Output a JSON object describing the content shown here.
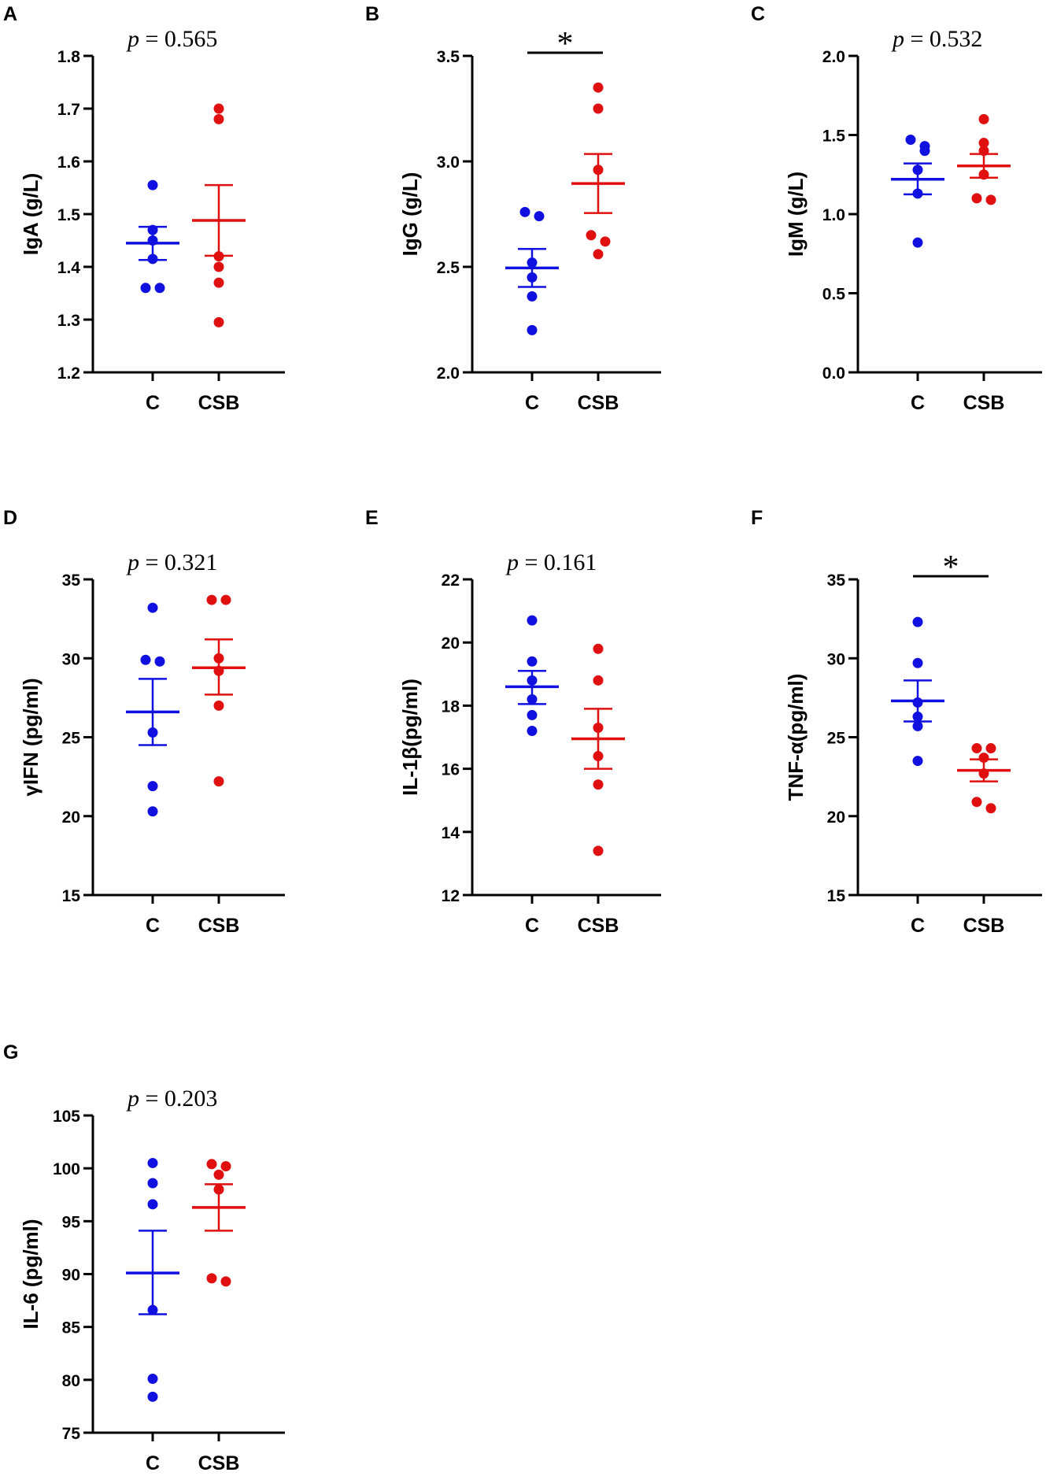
{
  "chart_data": [
    {
      "panel": "A",
      "type": "scatter",
      "ylabel": "IgA (g/L)",
      "ylim": [
        1.2,
        1.8
      ],
      "yticks": [
        "1.2",
        "1.3",
        "1.4",
        "1.5",
        "1.6",
        "1.7",
        "1.8"
      ],
      "categories": [
        "C",
        "CSB"
      ],
      "annotation": "p = 0.565",
      "annotation_type": "pvalue",
      "p_value": "0.565",
      "series": [
        {
          "name": "C",
          "color": "#1010e0",
          "values": [
            1.555,
            1.47,
            1.45,
            1.415,
            1.36,
            1.36
          ],
          "mean": 1.445,
          "sem_low": 1.413,
          "sem_high": 1.476
        },
        {
          "name": "CSB",
          "color": "#e01010",
          "values": [
            1.7,
            1.68,
            1.42,
            1.4,
            1.37,
            1.295
          ],
          "mean": 1.488,
          "sem_low": 1.421,
          "sem_high": 1.555
        }
      ]
    },
    {
      "panel": "B",
      "type": "scatter",
      "ylabel": "IgG (g/L)",
      "ylim": [
        2.0,
        3.5
      ],
      "yticks": [
        "2.0",
        "2.5",
        "3.0",
        "3.5"
      ],
      "categories": [
        "C",
        "CSB"
      ],
      "annotation": "*",
      "annotation_type": "significance",
      "series": [
        {
          "name": "C",
          "color": "#1010e0",
          "values": [
            2.76,
            2.74,
            2.52,
            2.45,
            2.36,
            2.2
          ],
          "mean": 2.495,
          "sem_low": 2.405,
          "sem_high": 2.585
        },
        {
          "name": "CSB",
          "color": "#e01010",
          "values": [
            3.35,
            3.25,
            2.96,
            2.65,
            2.62,
            2.56
          ],
          "mean": 2.895,
          "sem_low": 2.755,
          "sem_high": 3.035
        }
      ]
    },
    {
      "panel": "C",
      "type": "scatter",
      "ylabel": "IgM (g/L)",
      "ylim": [
        0.0,
        2.0
      ],
      "yticks": [
        "0.0",
        "0.5",
        "1.0",
        "1.5",
        "2.0"
      ],
      "categories": [
        "C",
        "CSB"
      ],
      "annotation": "p = 0.532",
      "annotation_type": "pvalue",
      "p_value": "0.532",
      "series": [
        {
          "name": "C",
          "color": "#1010e0",
          "values": [
            1.47,
            1.43,
            1.4,
            1.28,
            1.13,
            0.82
          ],
          "mean": 1.22,
          "sem_low": 1.125,
          "sem_high": 1.32
        },
        {
          "name": "CSB",
          "color": "#e01010",
          "values": [
            1.6,
            1.45,
            1.4,
            1.25,
            1.1,
            1.09
          ],
          "mean": 1.305,
          "sem_low": 1.23,
          "sem_high": 1.38
        }
      ]
    },
    {
      "panel": "D",
      "type": "scatter",
      "ylabel": "γIFN (pg/ml)",
      "ylim": [
        15,
        35
      ],
      "yticks": [
        "15",
        "20",
        "25",
        "30",
        "35"
      ],
      "categories": [
        "C",
        "CSB"
      ],
      "annotation": "p = 0.321",
      "annotation_type": "pvalue",
      "p_value": "0.321",
      "series": [
        {
          "name": "C",
          "color": "#1010e0",
          "values": [
            33.2,
            29.9,
            29.8,
            25.3,
            21.9,
            20.3
          ],
          "mean": 26.6,
          "sem_low": 24.5,
          "sem_high": 28.7
        },
        {
          "name": "CSB",
          "color": "#e01010",
          "values": [
            33.7,
            33.7,
            30.0,
            29.2,
            27.0,
            22.2
          ],
          "mean": 29.4,
          "sem_low": 27.7,
          "sem_high": 31.2
        }
      ]
    },
    {
      "panel": "E",
      "type": "scatter",
      "ylabel": "IL-1β(pg/ml)",
      "ylim": [
        12,
        22
      ],
      "yticks": [
        "12",
        "14",
        "16",
        "18",
        "20",
        "22"
      ],
      "categories": [
        "C",
        "CSB"
      ],
      "annotation": "p = 0.161",
      "annotation_type": "pvalue",
      "p_value": "0.161",
      "series": [
        {
          "name": "C",
          "color": "#1010e0",
          "values": [
            20.7,
            19.4,
            18.8,
            18.2,
            17.7,
            17.2
          ],
          "mean": 18.6,
          "sem_low": 18.05,
          "sem_high": 19.1
        },
        {
          "name": "CSB",
          "color": "#e01010",
          "values": [
            19.8,
            18.8,
            17.3,
            16.4,
            15.5,
            13.4
          ],
          "mean": 16.95,
          "sem_low": 16.0,
          "sem_high": 17.9
        }
      ]
    },
    {
      "panel": "F",
      "type": "scatter",
      "ylabel": "TNF-α(pg/ml)",
      "ylim": [
        15,
        35
      ],
      "yticks": [
        "15",
        "20",
        "25",
        "30",
        "35"
      ],
      "categories": [
        "C",
        "CSB"
      ],
      "annotation": "*",
      "annotation_type": "significance",
      "series": [
        {
          "name": "C",
          "color": "#1010e0",
          "values": [
            32.3,
            29.7,
            27.2,
            26.3,
            25.7,
            23.5
          ],
          "mean": 27.3,
          "sem_low": 26.0,
          "sem_high": 28.6
        },
        {
          "name": "CSB",
          "color": "#e01010",
          "values": [
            24.3,
            24.3,
            23.7,
            22.7,
            20.9,
            20.5
          ],
          "mean": 22.9,
          "sem_low": 22.2,
          "sem_high": 23.6
        }
      ]
    },
    {
      "panel": "G",
      "type": "scatter",
      "ylabel": "IL-6 (pg/ml)",
      "ylim": [
        75,
        105
      ],
      "yticks": [
        "75",
        "80",
        "85",
        "90",
        "95",
        "100",
        "105"
      ],
      "categories": [
        "C",
        "CSB"
      ],
      "annotation": "p = 0.203",
      "annotation_type": "pvalue",
      "p_value": "0.203",
      "series": [
        {
          "name": "C",
          "color": "#1010e0",
          "values": [
            100.5,
            98.6,
            96.6,
            86.6,
            80.1,
            78.4
          ],
          "mean": 90.1,
          "sem_low": 86.2,
          "sem_high": 94.1
        },
        {
          "name": "CSB",
          "color": "#e01010",
          "values": [
            100.4,
            100.2,
            99.4,
            98.0,
            89.6,
            89.3
          ],
          "mean": 96.3,
          "sem_low": 94.1,
          "sem_high": 98.5
        }
      ]
    }
  ]
}
